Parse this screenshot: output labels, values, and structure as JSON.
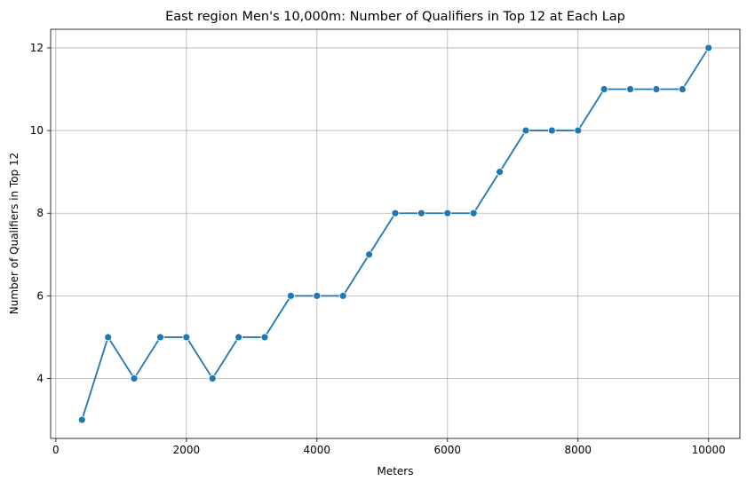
{
  "chart_data": {
    "type": "line",
    "title": "East region Men's 10,000m: Number of Qualifiers in Top 12 at Each Lap",
    "x_label": "Meters",
    "y_label": "Number of Qualifiers in Top 12",
    "x": [
      400,
      800,
      1200,
      1600,
      2000,
      2400,
      2800,
      3200,
      3600,
      4000,
      4400,
      4800,
      5200,
      5600,
      6000,
      6400,
      6800,
      7200,
      7600,
      8000,
      8400,
      8800,
      9200,
      9600,
      10000
    ],
    "series": [
      {
        "name": "Qualifiers",
        "color": "#1f77b4",
        "values": [
          3,
          5,
          4,
          5,
          5,
          4,
          5,
          5,
          6,
          6,
          6,
          7,
          8,
          8,
          8,
          8,
          9,
          10,
          10,
          10,
          11,
          11,
          11,
          11,
          12
        ]
      }
    ],
    "xlim": [
      -80,
      10480
    ],
    "xticks": [
      0,
      2000,
      4000,
      6000,
      8000,
      10000
    ],
    "ylim": [
      2.55,
      12.45
    ],
    "yticks": [
      4,
      6,
      8,
      10,
      12
    ],
    "grid": true
  }
}
